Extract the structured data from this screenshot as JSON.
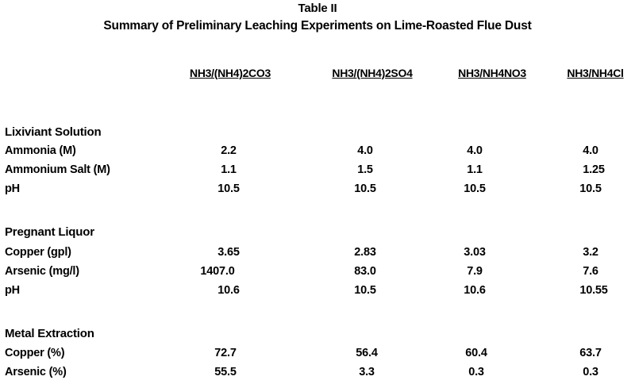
{
  "table": {
    "title": "Table II",
    "subtitle": "Summary of Preliminary Leaching Experiments on Lime-Roasted Flue Dust",
    "columns": [
      "NH3/(NH4)2CO3",
      "NH3/(NH4)2SO4",
      "NH3/NH4NO3",
      "NH3/NH4Cl"
    ],
    "sections": [
      {
        "heading": "Lixiviant Solution",
        "rows": [
          {
            "label": "Ammonia (M)",
            "values": [
              "2.2",
              "4.0",
              "4.0",
              "4.0"
            ]
          },
          {
            "label": "Ammonium Salt (M)",
            "values": [
              "1.1",
              "1.5",
              "1.1",
              "1.25"
            ]
          },
          {
            "label": "pH",
            "values": [
              "10.5",
              "10.5",
              "10.5",
              "10.5"
            ]
          }
        ]
      },
      {
        "heading": "Pregnant Liquor",
        "rows": [
          {
            "label": "Copper (gpl)",
            "values": [
              "3.65",
              "2.83",
              "3.03",
              "3.2"
            ]
          },
          {
            "label": "Arsenic (mg/l)",
            "values": [
              "1407.0",
              "83.0",
              "7.9",
              "7.6"
            ]
          },
          {
            "label": "pH",
            "values": [
              "10.6",
              "10.5",
              "10.6",
              "10.55"
            ]
          }
        ]
      },
      {
        "heading": "Metal Extraction",
        "rows": [
          {
            "label": "Copper (%)",
            "values": [
              "72.7",
              "56.4",
              "60.4",
              "63.7"
            ]
          },
          {
            "label": "Arsenic (%)",
            "values": [
              "55.5",
              "3.3",
              "0.3",
              "0.3"
            ]
          }
        ]
      }
    ]
  }
}
